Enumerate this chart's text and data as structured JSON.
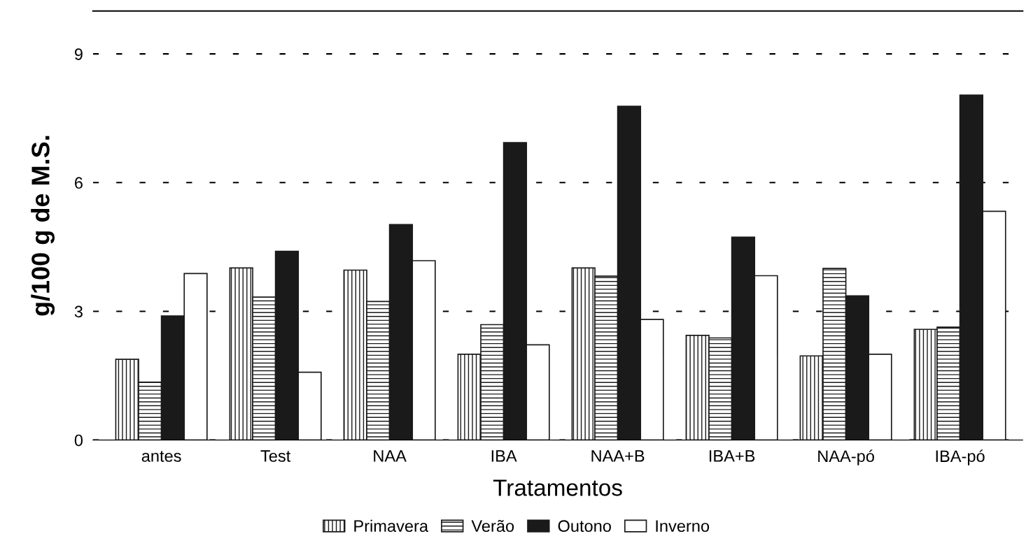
{
  "chart_data": {
    "type": "bar",
    "xlabel": "Tratamentos",
    "ylabel": "g/100 g de M.S.",
    "categories": [
      "antes",
      "Test",
      "NAA",
      "IBA",
      "NAA+B",
      "IBA+B",
      "NAA-pó",
      "IBA-pó"
    ],
    "series": [
      {
        "name": "Primavera",
        "color": "#1a1a1a",
        "values": [
          1.88,
          4.01,
          3.96,
          2.0,
          4.01,
          2.44,
          1.96,
          2.58
        ]
      },
      {
        "name": "Verão",
        "color": "#1a1a1a",
        "values": [
          1.35,
          3.33,
          3.23,
          2.69,
          3.82,
          2.38,
          4.0,
          2.63
        ]
      },
      {
        "name": "Outono",
        "color": "#1a1a1a",
        "values": [
          2.89,
          4.4,
          5.02,
          6.93,
          7.78,
          4.73,
          3.36,
          8.04
        ]
      },
      {
        "name": "Inverno",
        "color": "#ffffff",
        "values": [
          3.88,
          1.58,
          4.18,
          2.22,
          2.81,
          3.83,
          2.0,
          5.33
        ]
      }
    ],
    "ylim": [
      0,
      10
    ],
    "yticks": [
      0,
      3,
      6,
      9
    ],
    "grid": "y",
    "line_style": "dashed",
    "legend": "bottom"
  }
}
